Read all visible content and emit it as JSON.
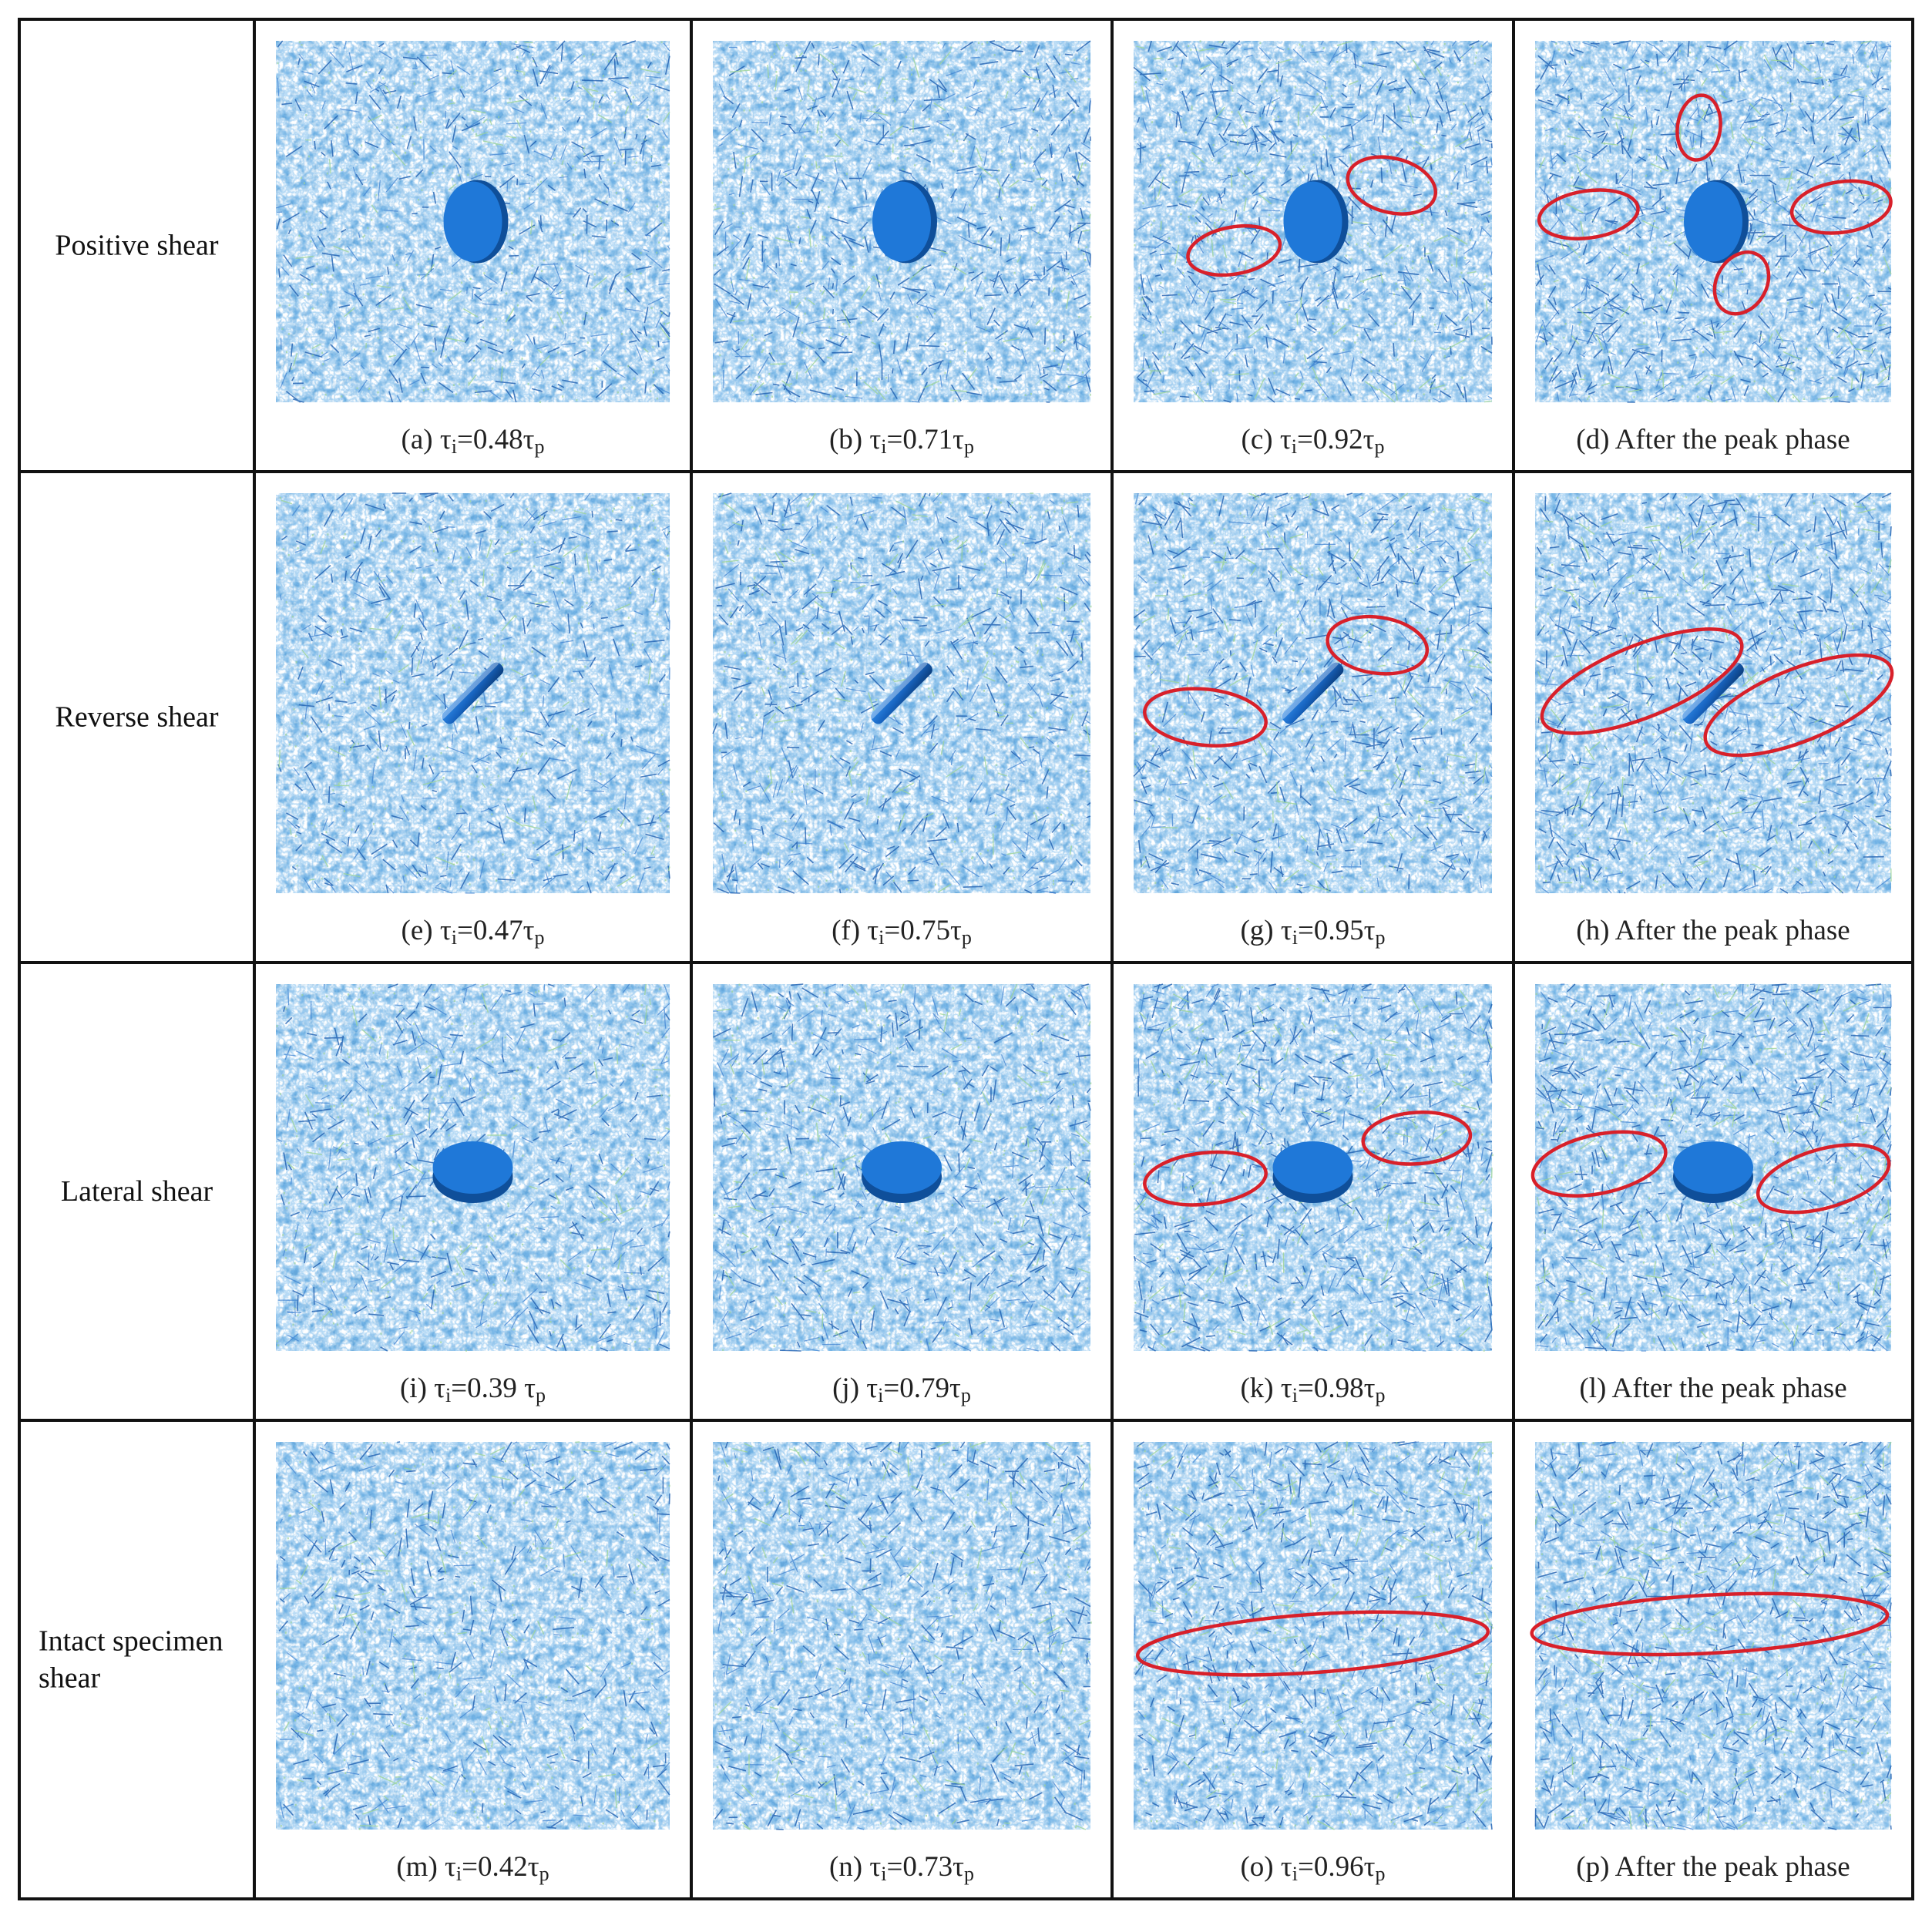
{
  "figure": {
    "rows": [
      {
        "label_lines": [
          "Positive shear"
        ],
        "inclusion": "disk-vertical",
        "panels": [
          {
            "letter": "(a)",
            "stress": "0.48",
            "ellipses": 0
          },
          {
            "letter": "(b)",
            "stress": "0.71",
            "ellipses": 0
          },
          {
            "letter": "(c)",
            "stress": "0.92",
            "ellipses": 2
          },
          {
            "letter": "(d)",
            "caption": "After the peak phase",
            "ellipses": 4
          }
        ]
      },
      {
        "label_lines": [
          "Reverse shear"
        ],
        "inclusion": "disk-edge",
        "panels": [
          {
            "letter": "(e)",
            "stress": "0.47",
            "ellipses": 0
          },
          {
            "letter": "(f)",
            "stress": "0.75",
            "ellipses": 0
          },
          {
            "letter": "(g)",
            "stress": "0.95",
            "ellipses": 2
          },
          {
            "letter": "(h)",
            "caption": "After the peak phase",
            "ellipses": 2
          }
        ]
      },
      {
        "label_lines": [
          "Lateral shear"
        ],
        "inclusion": "disk-flat",
        "panels": [
          {
            "letter": "(i)",
            "stress": "0.39 ",
            "ellipses": 0
          },
          {
            "letter": "(j)",
            "stress": "0.79",
            "ellipses": 0
          },
          {
            "letter": "(k)",
            "stress": "0.98",
            "ellipses": 2
          },
          {
            "letter": "(l)",
            "caption": "After the peak phase",
            "ellipses": 2
          }
        ]
      },
      {
        "label_lines": [
          "Intact specimen",
          "shear"
        ],
        "inclusion": "none",
        "panels": [
          {
            "letter": "(m)",
            "stress": "0.42",
            "ellipses": 0
          },
          {
            "letter": "(n)",
            "stress": "0.73",
            "ellipses": 0
          },
          {
            "letter": "(o)",
            "stress": "0.96",
            "ellipses": 1
          },
          {
            "letter": "(p)",
            "caption": "After the peak phase",
            "ellipses": 1
          }
        ]
      }
    ],
    "stress_prefix": "τ",
    "stress_sub_i": "i",
    "stress_sub_p": "p",
    "colors": {
      "crack_dark": "#1f5fb0",
      "crack_mid": "#3a7fd0",
      "crack_light": "#7fb2e6",
      "crack_green": "#9ed49a",
      "inclusion": "#1f78d8",
      "inclusion_dark": "#0f4f9a",
      "highlight_ellipse": "#d8202a"
    }
  }
}
